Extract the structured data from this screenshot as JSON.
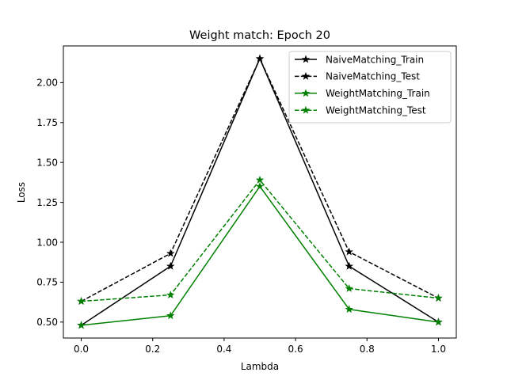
{
  "chart_data": {
    "type": "line",
    "title": "Weight match: Epoch 20",
    "xlabel": "Lambda",
    "ylabel": "Loss",
    "xlim": [
      -0.05,
      1.05
    ],
    "ylim": [
      0.4,
      2.23
    ],
    "x": [
      0.0,
      0.25,
      0.5,
      0.75,
      1.0
    ],
    "xticks": [
      0.0,
      0.2,
      0.4,
      0.6,
      0.8,
      1.0
    ],
    "xtick_labels": [
      "0.0",
      "0.2",
      "0.4",
      "0.6",
      "0.8",
      "1.0"
    ],
    "yticks": [
      0.5,
      0.75,
      1.0,
      1.25,
      1.5,
      1.75,
      2.0
    ],
    "ytick_labels": [
      "0.50",
      "0.75",
      "1.00",
      "1.25",
      "1.50",
      "1.75",
      "2.00"
    ],
    "grid": false,
    "legend_position": "top-right",
    "series": [
      {
        "name": "NaiveMatching_Train",
        "color": "#000000",
        "linestyle": "solid",
        "marker": "star",
        "values": [
          0.48,
          0.85,
          2.15,
          0.85,
          0.5
        ]
      },
      {
        "name": "NaiveMatching_Test",
        "color": "#000000",
        "linestyle": "dashed",
        "marker": "star",
        "values": [
          0.63,
          0.93,
          2.15,
          0.94,
          0.65
        ]
      },
      {
        "name": "WeightMatching_Train",
        "color": "#008000",
        "linestyle": "solid",
        "marker": "star",
        "values": [
          0.48,
          0.54,
          1.35,
          0.58,
          0.5
        ]
      },
      {
        "name": "WeightMatching_Test",
        "color": "#008000",
        "linestyle": "dashed",
        "marker": "star",
        "values": [
          0.63,
          0.67,
          1.39,
          0.71,
          0.65
        ]
      }
    ]
  }
}
